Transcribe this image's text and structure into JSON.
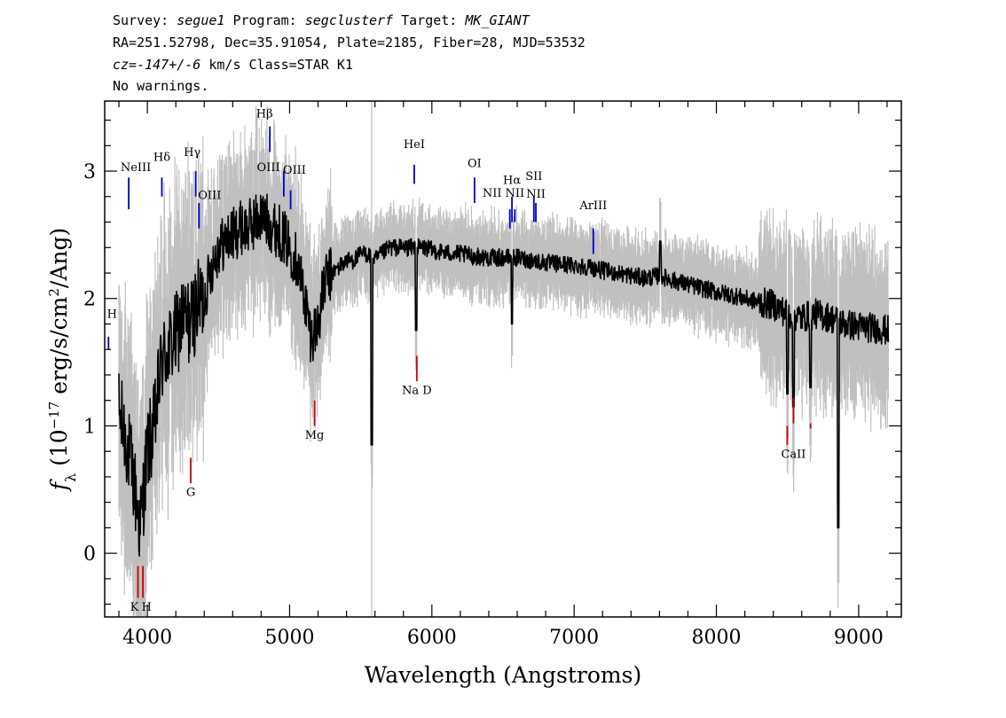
{
  "header": {
    "line1": [
      {
        "text": "Survey: ",
        "italic": false
      },
      {
        "text": "segue1",
        "italic": true
      },
      {
        "text": " Program: ",
        "italic": false
      },
      {
        "text": "segclusterf",
        "italic": true
      },
      {
        "text": " Target: ",
        "italic": false
      },
      {
        "text": "MK_GIANT",
        "italic": true
      }
    ],
    "line2": "RA=251.52798, Dec=35.91054, Plate=2185, Fiber=28, MJD=53532",
    "line3": [
      {
        "text": "cz=-147+/-6",
        "italic": true
      },
      {
        "text": " km/s Class=STAR K1",
        "italic": false
      }
    ],
    "line4": "No warnings."
  },
  "colors": {
    "spectrum": "#000000",
    "error_band": "#c0c0c0",
    "emission_line": "#0000cc",
    "absorption_line": "#cc0000",
    "axes": "#000000"
  },
  "chart_data": {
    "type": "line",
    "xlabel": "Wavelength (Angstroms)",
    "ylabel": "f_λ (10^-17 erg/s/cm^2/Ang)",
    "ylabel_parts": {
      "f": "f",
      "sub": "λ",
      "pre": " (10",
      "sup1": "−17",
      "mid": " erg/s/cm",
      "sup2": "2",
      "post": "/Ang)"
    },
    "xlim": [
      3700,
      9300
    ],
    "ylim": [
      -0.5,
      3.55
    ],
    "xticks": [
      4000,
      5000,
      6000,
      7000,
      8000,
      9000
    ],
    "xtick_labels": [
      "4000",
      "5000",
      "6000",
      "7000",
      "8000",
      "9000"
    ],
    "yticks": [
      0,
      1,
      2,
      3
    ],
    "ytick_labels": [
      "0",
      "1",
      "2",
      "3"
    ],
    "grid": false,
    "series": [
      {
        "role": "flux",
        "x": [
          3800,
          3850,
          3900,
          3950,
          4000,
          4050,
          4100,
          4150,
          4200,
          4250,
          4300,
          4350,
          4400,
          4450,
          4500,
          4550,
          4600,
          4650,
          4700,
          4750,
          4800,
          4850,
          4900,
          4950,
          5000,
          5050,
          5100,
          5150,
          5200,
          5250,
          5300,
          5350,
          5400,
          5450,
          5500,
          5550,
          5600,
          5650,
          5700,
          5750,
          5800,
          5850,
          5900,
          5950,
          6000,
          6100,
          6200,
          6300,
          6400,
          6500,
          6600,
          6700,
          6800,
          6900,
          7000,
          7100,
          7200,
          7300,
          7400,
          7500,
          7600,
          7700,
          7800,
          7900,
          8000,
          8100,
          8200,
          8300,
          8400,
          8500,
          8600,
          8700,
          8800,
          8900,
          9000,
          9100,
          9200
        ],
        "y": [
          1.1,
          0.9,
          0.6,
          0.2,
          0.8,
          1.0,
          1.5,
          1.6,
          1.7,
          1.85,
          1.8,
          1.95,
          2.0,
          2.25,
          2.4,
          2.45,
          2.5,
          2.55,
          2.55,
          2.6,
          2.65,
          2.6,
          2.55,
          2.5,
          2.4,
          2.3,
          2.05,
          1.7,
          1.8,
          2.15,
          2.2,
          2.25,
          2.3,
          2.3,
          2.35,
          2.35,
          2.3,
          2.35,
          2.4,
          2.4,
          2.4,
          2.4,
          2.4,
          2.4,
          2.38,
          2.36,
          2.35,
          2.33,
          2.32,
          2.32,
          2.32,
          2.3,
          2.28,
          2.27,
          2.26,
          2.25,
          2.22,
          2.2,
          2.18,
          2.16,
          2.18,
          2.14,
          2.11,
          2.08,
          2.05,
          2.03,
          2.0,
          1.97,
          1.95,
          1.88,
          1.85,
          1.88,
          1.85,
          1.8,
          1.78,
          1.77,
          1.75
        ]
      }
    ],
    "features": [
      {
        "x": 8857,
        "y": 0.2
      },
      {
        "x": 5577,
        "y": 0.85
      },
      {
        "x": 7605,
        "y": 2.45
      },
      {
        "x": 8500,
        "y": 1.25
      },
      {
        "x": 8542,
        "y": 1.15
      },
      {
        "x": 8662,
        "y": 1.3
      },
      {
        "x": 6563,
        "y": 1.8
      },
      {
        "x": 5890,
        "y": 1.75
      }
    ],
    "lines": [
      {
        "label": "H",
        "x": 3727,
        "y1": 1.7,
        "y2": 1.6,
        "kind": "emission",
        "dx": 4,
        "ty": 1.85
      },
      {
        "label": "NeIII",
        "x": 3869,
        "y1": 2.95,
        "y2": 2.7,
        "kind": "emission",
        "dx": 8,
        "ty": 3.0
      },
      {
        "label": "Hδ",
        "x": 4102,
        "y1": 2.95,
        "y2": 2.8,
        "kind": "emission",
        "dx": 0,
        "ty": 3.08
      },
      {
        "label": "Hγ",
        "x": 4340,
        "y1": 3.0,
        "y2": 2.8,
        "kind": "emission",
        "dx": -4,
        "ty": 3.12
      },
      {
        "label": "OIII",
        "x": 4363,
        "y1": 2.75,
        "y2": 2.55,
        "kind": "emission",
        "dx": 12,
        "ty": 2.78
      },
      {
        "label": "Hβ",
        "x": 4861,
        "y1": 3.35,
        "y2": 3.15,
        "kind": "emission",
        "dx": -6,
        "ty": 3.42
      },
      {
        "label": "OIII",
        "x": 4959,
        "y1": 3.0,
        "y2": 2.8,
        "kind": "emission",
        "dx": 12,
        "ty": 2.98
      },
      {
        "label": "OIII",
        "x": 5007,
        "y1": 2.85,
        "y2": 2.7,
        "kind": "emission",
        "dx": -25,
        "ty": 3.0
      },
      {
        "label": "HeI",
        "x": 5876,
        "y1": 3.05,
        "y2": 2.9,
        "kind": "emission",
        "dx": 0,
        "ty": 3.18
      },
      {
        "label": "OI",
        "x": 6300,
        "y1": 2.95,
        "y2": 2.75,
        "kind": "emission",
        "dx": 0,
        "ty": 3.03
      },
      {
        "label": "NII",
        "x": 6548,
        "y1": 2.7,
        "y2": 2.55,
        "kind": "emission",
        "dx": -20,
        "ty": 2.8
      },
      {
        "label": "Hα",
        "x": 6563,
        "y1": 2.8,
        "y2": 2.6,
        "kind": "emission",
        "dx": 0,
        "ty": 2.9
      },
      {
        "label": "NII",
        "x": 6583,
        "y1": 2.7,
        "y2": 2.6,
        "kind": "emission",
        "dx": 0,
        "ty": 2.8
      },
      {
        "label": "SII",
        "x": 6717,
        "y1": 2.8,
        "y2": 2.6,
        "kind": "emission",
        "dx": 0,
        "ty": 2.93
      },
      {
        "label": "NII",
        "x": 6731,
        "y1": 2.75,
        "y2": 2.6,
        "kind": "emission",
        "dx": 0,
        "ty": 2.79
      },
      {
        "label": "ArIII",
        "x": 7135,
        "y1": 2.55,
        "y2": 2.35,
        "kind": "emission",
        "dx": 0,
        "ty": 2.7
      },
      {
        "label": "K",
        "x": 3934,
        "y1": -0.1,
        "y2": -0.35,
        "kind": "absorption",
        "dx": -4,
        "ty": -0.45
      },
      {
        "label": "H",
        "x": 3969,
        "y1": -0.1,
        "y2": -0.35,
        "kind": "absorption",
        "dx": 4,
        "ty": -0.45
      },
      {
        "label": "G",
        "x": 4305,
        "y1": 0.75,
        "y2": 0.55,
        "kind": "absorption",
        "dx": 0,
        "ty": 0.45
      },
      {
        "label": "Mg",
        "x": 5175,
        "y1": 1.2,
        "y2": 1.0,
        "kind": "absorption",
        "dx": 0,
        "ty": 0.9
      },
      {
        "label": "Na D",
        "x": 5894,
        "y1": 1.55,
        "y2": 1.35,
        "kind": "absorption",
        "dx": 0,
        "ty": 1.25
      },
      {
        "label": "",
        "x": 8498,
        "y1": 0.85,
        "y2": 1.0,
        "kind": "absorption",
        "dx": 0,
        "ty": 0
      },
      {
        "label": "CaII",
        "x": 8542,
        "y1": 1.02,
        "y2": 1.22,
        "kind": "absorption",
        "dx": 0,
        "ty": 0.75
      },
      {
        "label": "",
        "x": 8662,
        "y1": 1.02,
        "y2": 0.98,
        "kind": "absorption",
        "dx": 0,
        "ty": 0
      }
    ]
  }
}
